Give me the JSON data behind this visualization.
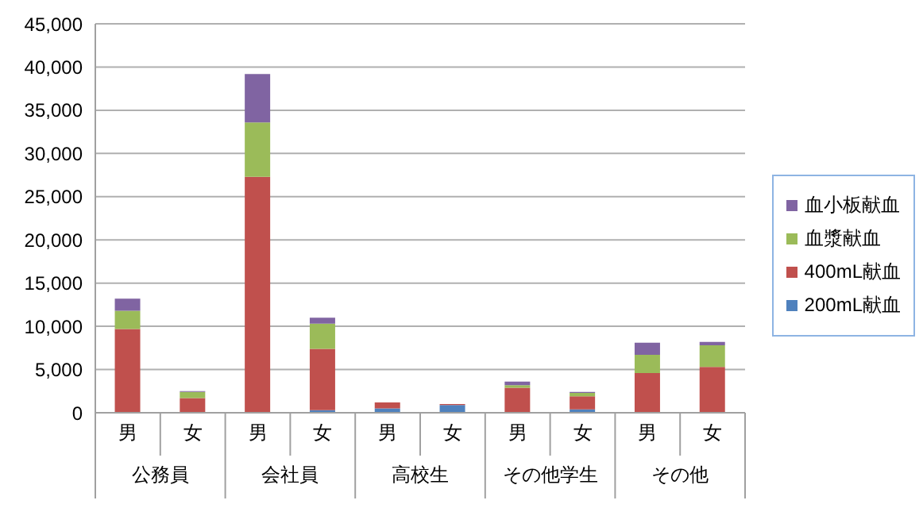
{
  "chart_data": {
    "type": "bar",
    "stacked": true,
    "categories": [
      "男",
      "女",
      "男",
      "女",
      "男",
      "女",
      "男",
      "女",
      "男",
      "女"
    ],
    "annotations": [
      "公務員",
      "会社員",
      "高校生",
      "その他学生",
      "その他"
    ],
    "series": [
      {
        "name": "200mL献血",
        "color": "#4f81bd",
        "values": [
          0,
          0,
          0,
          300,
          500,
          900,
          0,
          400,
          0,
          0
        ]
      },
      {
        "name": "400mL献血",
        "color": "#c0504d",
        "values": [
          9700,
          1700,
          27300,
          7100,
          700,
          100,
          2900,
          1500,
          4600,
          5300
        ]
      },
      {
        "name": "血漿献血",
        "color": "#9bbb59",
        "values": [
          2100,
          700,
          6300,
          2900,
          0,
          0,
          300,
          400,
          2100,
          2500
        ]
      },
      {
        "name": "血小板献血",
        "color": "#8064a2",
        "values": [
          1400,
          100,
          5600,
          700,
          0,
          0,
          400,
          100,
          1400,
          400
        ]
      }
    ],
    "ylim": [
      0,
      45000
    ],
    "yticks": [
      {
        "value": 0,
        "label": "0"
      },
      {
        "value": 5000,
        "label": "5,000"
      },
      {
        "value": 10000,
        "label": "10,000"
      },
      {
        "value": 15000,
        "label": "15,000"
      },
      {
        "value": 20000,
        "label": "20,000"
      },
      {
        "value": 25000,
        "label": "25,000"
      },
      {
        "value": 30000,
        "label": "30,000"
      },
      {
        "value": 35000,
        "label": "35,000"
      },
      {
        "value": 40000,
        "label": "40,000"
      },
      {
        "value": 45000,
        "label": "45,000"
      }
    ],
    "grid": "y",
    "legend": "right"
  }
}
